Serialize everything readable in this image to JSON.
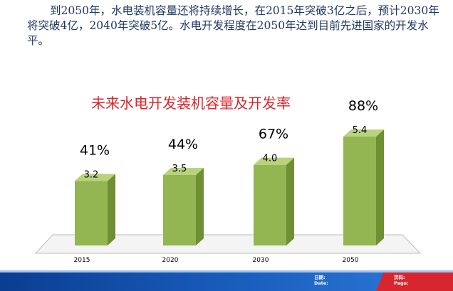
{
  "intro_text": "到2050年，水电装机容量还将持续增长，在2015年突破3亿之后，预计2030年将突破4亿，2040年突破5亿。水电开发程度在2050年达到目前先进国家的开发水平。",
  "chart_data": {
    "type": "bar",
    "title": "未来水电开发装机容量及开发率",
    "categories": [
      "2015",
      "2020",
      "2030",
      "2050"
    ],
    "values": [
      3.2,
      3.5,
      4.0,
      5.4
    ],
    "value_labels": [
      "3.2",
      "3.5",
      "4.0",
      "5.4"
    ],
    "rate_labels": [
      "41%",
      "44%",
      "67%",
      "88%"
    ],
    "ylim": [
      0,
      6
    ],
    "grid": false,
    "colors": {
      "bar_front": "#93b652",
      "bar_side": "#6f8f33",
      "bar_top": "#b9d27e",
      "title": "#d7262e"
    }
  },
  "footer": {
    "date_label": "日期:",
    "date_label_en": "Date:",
    "page_label": "页码:",
    "page_label_en": "Page:"
  }
}
